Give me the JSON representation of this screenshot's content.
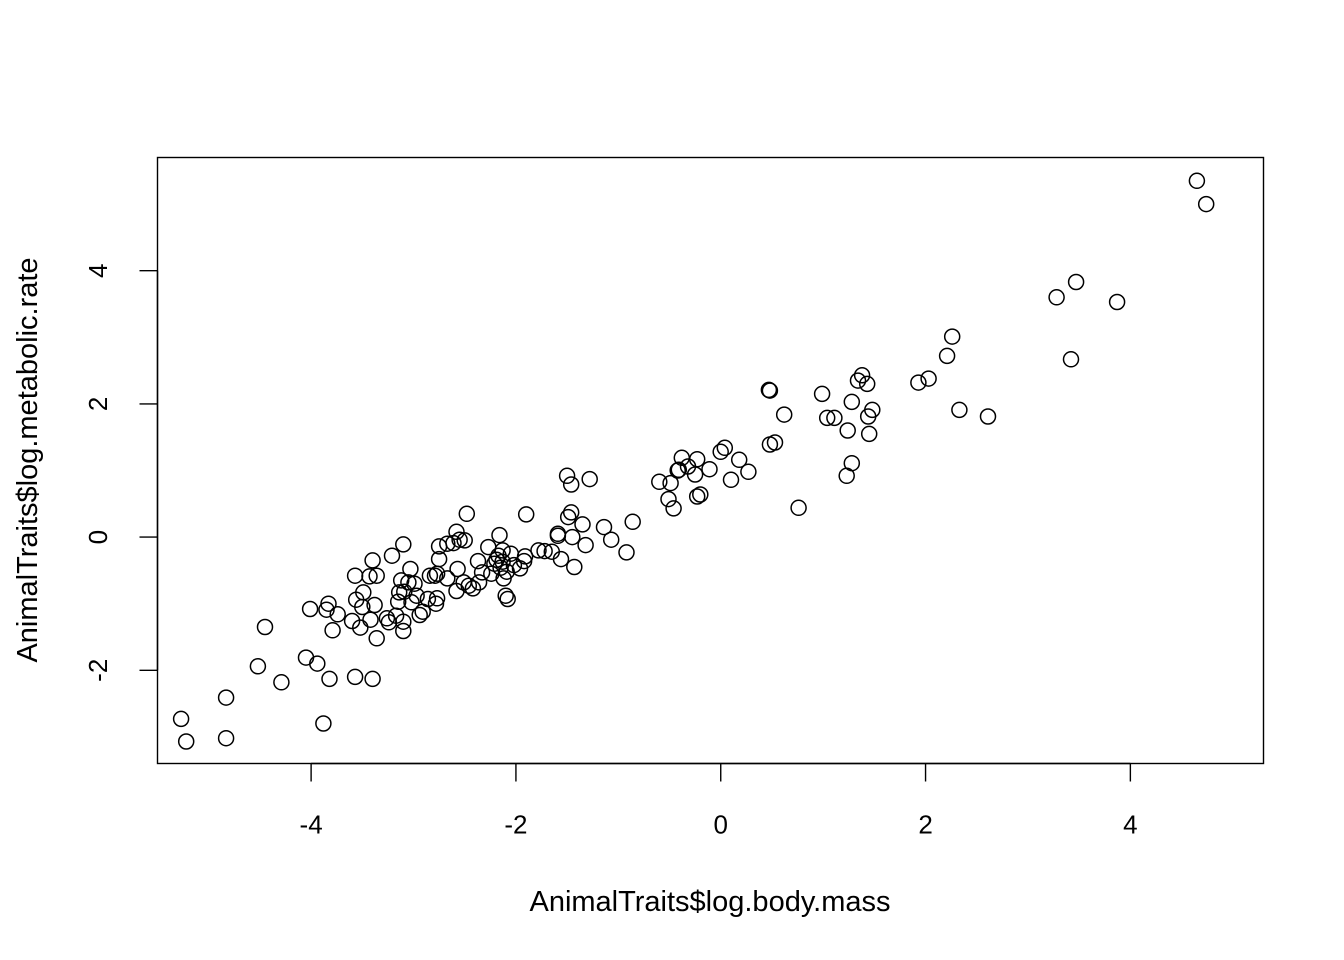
{
  "chart_data": {
    "type": "scatter",
    "title": "",
    "xlabel": "AnimalTraits$log.body.mass",
    "ylabel": "AnimalTraits$log.metabolic.rate",
    "xlim": [
      -5.5,
      5.3
    ],
    "ylim": [
      -3.4,
      5.7
    ],
    "xticks": [
      -4,
      -2,
      0,
      2,
      4
    ],
    "yticks": [
      -2,
      0,
      2,
      4
    ],
    "xtick_labels": [
      "-4",
      "-2",
      "0",
      "2",
      "4"
    ],
    "ytick_labels": [
      "-2",
      "0",
      "2",
      "4"
    ],
    "grid": false,
    "legend": "none",
    "marker": "open-circle",
    "points": [
      [
        4.65,
        5.35
      ],
      [
        4.74,
        5.0
      ],
      [
        3.28,
        3.6
      ],
      [
        3.47,
        3.83
      ],
      [
        3.87,
        3.53
      ],
      [
        3.42,
        2.67
      ],
      [
        2.26,
        3.01
      ],
      [
        2.21,
        2.72
      ],
      [
        1.93,
        2.32
      ],
      [
        2.03,
        2.38
      ],
      [
        2.33,
        1.91
      ],
      [
        2.61,
        1.81
      ],
      [
        1.38,
        2.43
      ],
      [
        1.34,
        2.35
      ],
      [
        1.43,
        2.3
      ],
      [
        1.28,
        2.03
      ],
      [
        1.48,
        1.91
      ],
      [
        1.44,
        1.81
      ],
      [
        1.45,
        1.55
      ],
      [
        1.24,
        1.6
      ],
      [
        1.28,
        1.11
      ],
      [
        1.23,
        0.92
      ],
      [
        0.99,
        2.15
      ],
      [
        1.04,
        1.79
      ],
      [
        1.11,
        1.79
      ],
      [
        0.76,
        0.44
      ],
      [
        0.47,
        2.21
      ],
      [
        0.48,
        2.2
      ],
      [
        0.62,
        1.84
      ],
      [
        0.53,
        1.42
      ],
      [
        0.48,
        1.39
      ],
      [
        0.04,
        1.34
      ],
      [
        0.0,
        1.28
      ],
      [
        -0.11,
        1.02
      ],
      [
        0.18,
        1.16
      ],
      [
        0.27,
        0.98
      ],
      [
        0.1,
        0.86
      ],
      [
        -0.23,
        1.17
      ],
      [
        -0.38,
        1.19
      ],
      [
        -0.32,
        1.06
      ],
      [
        -0.41,
        1.01
      ],
      [
        -0.42,
        1.0
      ],
      [
        -0.25,
        0.94
      ],
      [
        -0.2,
        0.64
      ],
      [
        -0.23,
        0.61
      ],
      [
        -0.6,
        0.83
      ],
      [
        -0.49,
        0.81
      ],
      [
        -0.51,
        0.57
      ],
      [
        -0.46,
        0.43
      ],
      [
        -0.86,
        0.23
      ],
      [
        -0.92,
        -0.23
      ],
      [
        -1.07,
        -0.04
      ],
      [
        -1.14,
        0.15
      ],
      [
        -1.28,
        0.87
      ],
      [
        -1.5,
        0.92
      ],
      [
        -1.46,
        0.79
      ],
      [
        -1.46,
        0.37
      ],
      [
        -1.49,
        0.3
      ],
      [
        -1.35,
        0.19
      ],
      [
        -1.59,
        0.05
      ],
      [
        -1.59,
        0.02
      ],
      [
        -1.45,
        0.0
      ],
      [
        -1.32,
        -0.12
      ],
      [
        -1.43,
        -0.45
      ],
      [
        -1.56,
        -0.33
      ],
      [
        -1.65,
        -0.22
      ],
      [
        -1.72,
        -0.21
      ],
      [
        -1.78,
        -0.2
      ],
      [
        -1.9,
        0.34
      ],
      [
        -1.91,
        -0.29
      ],
      [
        -1.92,
        -0.36
      ],
      [
        -1.96,
        -0.47
      ],
      [
        -2.02,
        -0.42
      ],
      [
        -2.05,
        -0.25
      ],
      [
        -2.16,
        0.03
      ],
      [
        -2.13,
        -0.2
      ],
      [
        -2.17,
        -0.28
      ],
      [
        -2.21,
        -0.4
      ],
      [
        -2.15,
        -0.46
      ],
      [
        -2.09,
        -0.52
      ],
      [
        -2.24,
        -0.55
      ],
      [
        -2.12,
        -0.62
      ],
      [
        -2.1,
        -0.88
      ],
      [
        -2.08,
        -0.93
      ],
      [
        -2.19,
        -0.34
      ],
      [
        -2.13,
        -0.37
      ],
      [
        -2.27,
        -0.15
      ],
      [
        -2.33,
        -0.53
      ],
      [
        -2.36,
        -0.68
      ],
      [
        -2.37,
        -0.36
      ],
      [
        -2.42,
        -0.77
      ],
      [
        -2.46,
        -0.73
      ],
      [
        -2.51,
        -0.68
      ],
      [
        -2.48,
        0.35
      ],
      [
        -2.5,
        -0.05
      ],
      [
        -2.55,
        -0.04
      ],
      [
        -2.58,
        0.08
      ],
      [
        -2.61,
        -0.09
      ],
      [
        -2.57,
        -0.48
      ],
      [
        -2.58,
        -0.81
      ],
      [
        -2.67,
        -0.1
      ],
      [
        -2.67,
        -0.62
      ],
      [
        -2.75,
        -0.14
      ],
      [
        -2.75,
        -0.33
      ],
      [
        -2.77,
        -0.55
      ],
      [
        -2.79,
        -0.58
      ],
      [
        -2.84,
        -0.58
      ],
      [
        -2.77,
        -0.92
      ],
      [
        -2.78,
        -1.0
      ],
      [
        -2.86,
        -0.93
      ],
      [
        -2.91,
        -1.12
      ],
      [
        -2.94,
        -1.17
      ],
      [
        -2.97,
        -0.88
      ],
      [
        -2.99,
        -0.7
      ],
      [
        -3.05,
        -0.68
      ],
      [
        -3.03,
        -0.48
      ],
      [
        -3.02,
        -0.98
      ],
      [
        -3.1,
        -0.11
      ],
      [
        -3.09,
        -0.82
      ],
      [
        -3.1,
        -1.27
      ],
      [
        -3.1,
        -1.41
      ],
      [
        -3.12,
        -0.65
      ],
      [
        -3.14,
        -0.83
      ],
      [
        -3.15,
        -0.97
      ],
      [
        -3.17,
        -1.18
      ],
      [
        -3.21,
        -0.28
      ],
      [
        -3.24,
        -1.28
      ],
      [
        -3.26,
        -1.22
      ],
      [
        -3.4,
        -0.35
      ],
      [
        -3.36,
        -0.58
      ],
      [
        -3.43,
        -0.59
      ],
      [
        -3.38,
        -1.02
      ],
      [
        -3.42,
        -1.24
      ],
      [
        -3.36,
        -1.52
      ],
      [
        -3.4,
        -2.13
      ],
      [
        -3.49,
        -0.83
      ],
      [
        -3.5,
        -1.05
      ],
      [
        -3.52,
        -1.36
      ],
      [
        -3.56,
        -0.94
      ],
      [
        -3.57,
        -0.58
      ],
      [
        -3.6,
        -1.26
      ],
      [
        -3.57,
        -2.1
      ],
      [
        -3.79,
        -1.4
      ],
      [
        -3.74,
        -1.16
      ],
      [
        -3.83,
        -1.0
      ],
      [
        -3.85,
        -1.09
      ],
      [
        -3.82,
        -2.13
      ],
      [
        -3.88,
        -2.8
      ],
      [
        -3.94,
        -1.9
      ],
      [
        -4.01,
        -1.08
      ],
      [
        -4.05,
        -1.81
      ],
      [
        -4.29,
        -2.18
      ],
      [
        -4.45,
        -1.35
      ],
      [
        -4.52,
        -1.94
      ],
      [
        -4.83,
        -2.41
      ],
      [
        -4.83,
        -3.02
      ],
      [
        -5.27,
        -2.73
      ],
      [
        -5.22,
        -3.07
      ]
    ]
  }
}
